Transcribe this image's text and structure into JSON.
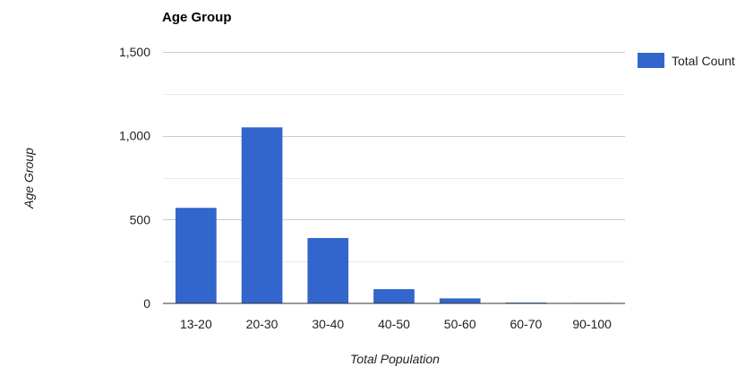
{
  "chart_data": {
    "type": "bar",
    "title": "Age Group",
    "xlabel": "Total Population",
    "ylabel": "Age Group",
    "categories": [
      "13-20",
      "20-30",
      "30-40",
      "40-50",
      "50-60",
      "60-70",
      "90-100"
    ],
    "series": [
      {
        "name": "Total Count",
        "values": [
          570,
          1050,
          390,
          85,
          30,
          5,
          3
        ],
        "color": "#3366cc"
      }
    ],
    "ylim": [
      0,
      1500
    ],
    "yticks": [
      0,
      500,
      1000,
      1500
    ],
    "ytick_labels": [
      "0",
      "500",
      "1,000",
      "1,500"
    ],
    "grid": true,
    "legend_position": "right"
  }
}
